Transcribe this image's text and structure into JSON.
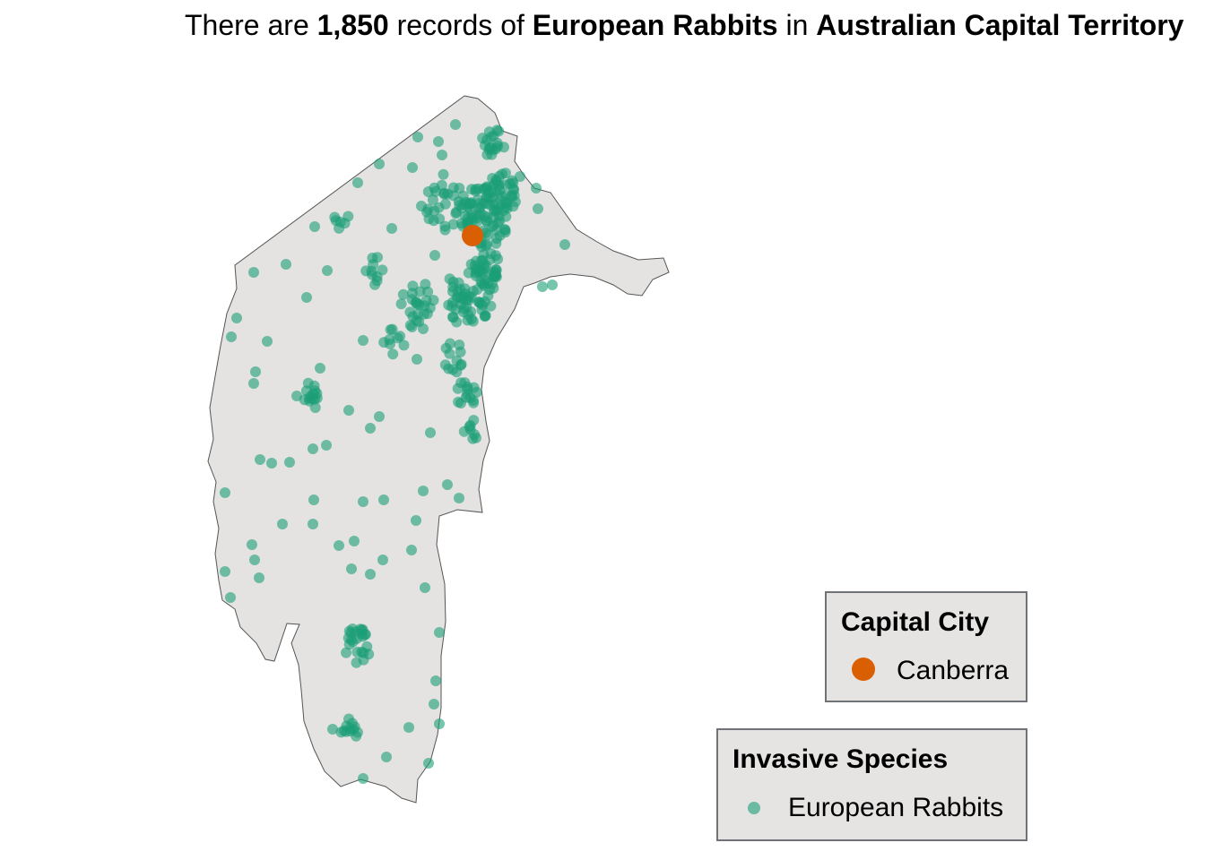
{
  "title": {
    "prefix": "There are ",
    "count": "1,850",
    "middle": " records of ",
    "species": "European Rabbits",
    "connector": " in ",
    "region": "Australian Capital Territory"
  },
  "colors": {
    "region_fill": "#e4e3e2",
    "region_stroke": "#555555",
    "record_point": "#1b9e77",
    "capital_point": "#d95f02",
    "legend_background": "#e5e4e3",
    "legend_border": "#6f7378"
  },
  "legends": {
    "capital": {
      "title": "Capital City",
      "label": "Canberra",
      "marker": "filled-circle"
    },
    "species": {
      "title": "Invasive Species",
      "label": "European Rabbits",
      "marker": "semi-transparent-circle"
    }
  },
  "map": {
    "region_name": "Australian Capital Territory",
    "capital": {
      "name": "Canberra"
    },
    "records_count": 1850
  }
}
